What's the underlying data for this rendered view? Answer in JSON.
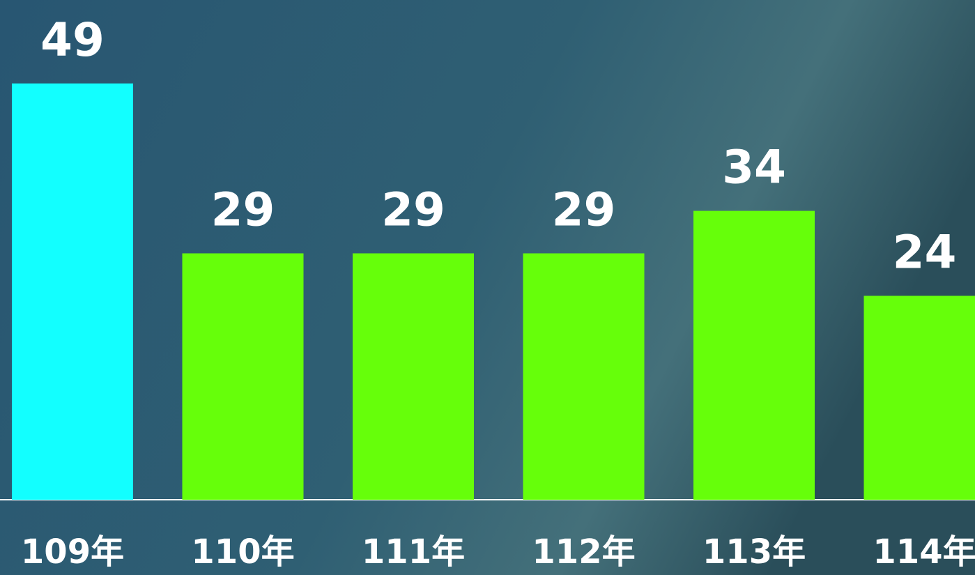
{
  "chart_data": {
    "type": "bar",
    "categories": [
      "109年",
      "110年",
      "111年",
      "112年",
      "113年",
      "114年"
    ],
    "values": [
      49,
      29,
      29,
      29,
      34,
      24
    ],
    "colors": [
      "#12ffff",
      "#66ff0a",
      "#66ff0a",
      "#66ff0a",
      "#66ff0a",
      "#66ff0a"
    ],
    "ylim": [
      0,
      58
    ]
  }
}
